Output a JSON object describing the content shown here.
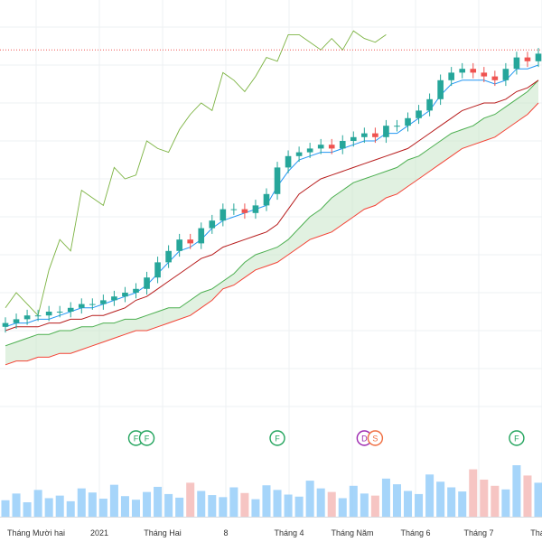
{
  "chart_data": {
    "type": "candlestick",
    "indicators": [
      "Ichimoku Cloud",
      "Volume"
    ],
    "x_tick_labels": [
      "Tháng Mười hai",
      "2021",
      "Tháng Hai",
      "8",
      "Tháng 4",
      "Tháng Năm",
      "Tháng 6",
      "Tháng 7",
      "Tháng"
    ],
    "price_range": [
      0,
      100
    ],
    "reference_line_level": 94,
    "candles_close": [
      22,
      23,
      24,
      24,
      25,
      25,
      26,
      27,
      27,
      28,
      29,
      30,
      31,
      34,
      38,
      41,
      44,
      43,
      47,
      49,
      52,
      52,
      51,
      53,
      56,
      63,
      66,
      67,
      68,
      69,
      68,
      70,
      71,
      72,
      71,
      74,
      74,
      76,
      78,
      81,
      86,
      88,
      89,
      88,
      87,
      86,
      89,
      92,
      91,
      93
    ],
    "conversion_line": [
      21,
      22,
      22,
      23,
      23,
      24,
      25,
      26,
      26,
      27,
      28,
      29,
      30,
      32,
      35,
      38,
      41,
      42,
      44,
      47,
      49,
      50,
      51,
      52,
      53,
      58,
      62,
      65,
      66,
      67,
      67,
      68,
      69,
      70,
      70,
      72,
      72,
      74,
      76,
      78,
      82,
      85,
      86,
      86,
      86,
      85,
      86,
      89,
      89,
      90
    ],
    "base_line": [
      20,
      21,
      21,
      21,
      22,
      22,
      23,
      23,
      24,
      24,
      25,
      26,
      28,
      29,
      31,
      33,
      35,
      37,
      39,
      40,
      42,
      43,
      44,
      45,
      46,
      48,
      52,
      56,
      58,
      60,
      61,
      62,
      63,
      64,
      65,
      66,
      67,
      68,
      70,
      72,
      74,
      76,
      78,
      79,
      80,
      80,
      81,
      83,
      84,
      86
    ],
    "leading_span_a": [
      16,
      17,
      18,
      19,
      19,
      20,
      20,
      21,
      21,
      22,
      22,
      23,
      23,
      24,
      25,
      26,
      26,
      28,
      30,
      31,
      33,
      35,
      38,
      40,
      41,
      42,
      44,
      47,
      50,
      52,
      55,
      57,
      59,
      60,
      61,
      62,
      63,
      65,
      66,
      68,
      70,
      72,
      73,
      74,
      76,
      77,
      79,
      81,
      83,
      86
    ],
    "leading_span_b": [
      11,
      12,
      12,
      13,
      13,
      14,
      14,
      15,
      16,
      17,
      18,
      19,
      20,
      20,
      21,
      22,
      23,
      24,
      26,
      28,
      31,
      32,
      34,
      36,
      37,
      38,
      40,
      42,
      44,
      45,
      46,
      48,
      50,
      52,
      53,
      55,
      56,
      58,
      60,
      62,
      64,
      66,
      68,
      69,
      70,
      71,
      73,
      75,
      77,
      80
    ],
    "lagging_span": [
      26,
      30,
      27,
      24,
      36,
      44,
      41,
      57,
      55,
      53,
      63,
      60,
      61,
      70,
      68,
      67,
      73,
      77,
      80,
      78,
      88,
      86,
      83,
      87,
      92,
      91,
      98,
      98,
      96,
      94,
      97,
      94,
      99,
      97,
      96,
      98
    ],
    "volume": [
      0.32,
      0.45,
      0.28,
      0.52,
      0.36,
      0.41,
      0.3,
      0.55,
      0.47,
      0.35,
      0.62,
      0.4,
      0.33,
      0.48,
      0.58,
      0.44,
      0.37,
      0.66,
      0.5,
      0.42,
      0.38,
      0.57,
      0.46,
      0.34,
      0.61,
      0.52,
      0.43,
      0.39,
      0.7,
      0.55,
      0.48,
      0.36,
      0.6,
      0.45,
      0.41,
      0.74,
      0.63,
      0.5,
      0.44,
      0.82,
      0.68,
      0.57,
      0.49,
      0.92,
      0.72,
      0.6,
      0.53,
      1.0,
      0.8,
      0.66
    ],
    "event_markers": [
      {
        "label": "F",
        "color": "#22a45d",
        "x_index": 12
      },
      {
        "label": "F",
        "color": "#22a45d",
        "x_index": 13
      },
      {
        "label": "F",
        "color": "#22a45d",
        "x_index": 25
      },
      {
        "label": "D",
        "color": "#9c27b0",
        "x_index": 33
      },
      {
        "label": "S",
        "color": "#ef6c3e",
        "x_index": 34
      },
      {
        "label": "F",
        "color": "#22a45d",
        "x_index": 47
      }
    ],
    "colors": {
      "up": "#26a69a",
      "down": "#ef5350",
      "conversion_line": "#2196f3",
      "base_line": "#b71c1c",
      "lagging_span": "#7cb342",
      "span_a": "#4caf50",
      "span_b": "#f44336",
      "cloud_fill": "#c8e6c9",
      "volume_bar": "#90caf9",
      "reference_line": "#ef5350",
      "grid": "#eef0f3",
      "axis_text": "#333333"
    }
  }
}
